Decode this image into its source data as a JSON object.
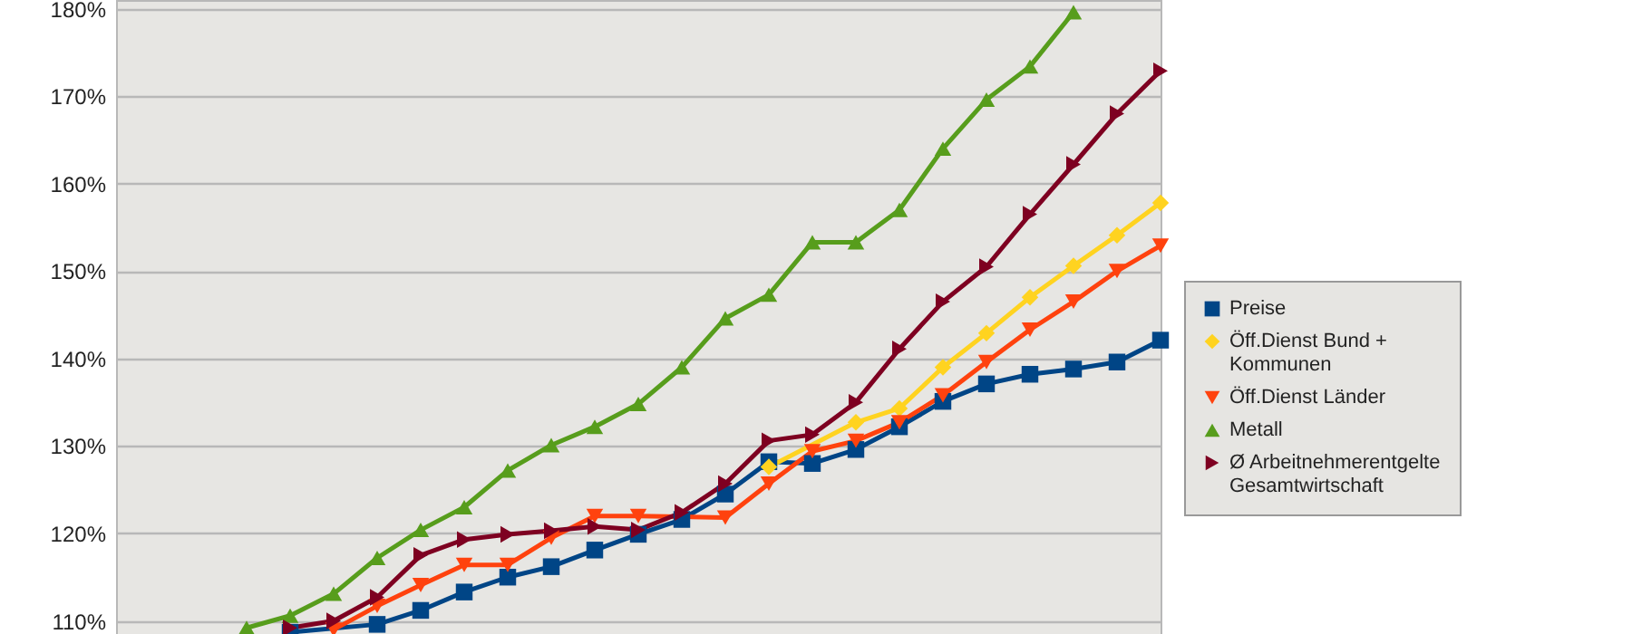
{
  "chart_data": {
    "type": "line",
    "categories": [
      null,
      null,
      null,
      null,
      null,
      null,
      null,
      null,
      null,
      null,
      null,
      null,
      null,
      null,
      null,
      null,
      null,
      null,
      null,
      null,
      null,
      null,
      null,
      null,
      null
    ],
    "series": [
      {
        "name": "Preise",
        "color": "#004586",
        "marker": "square",
        "values": [
          null,
          null,
          null,
          null,
          108.7,
          null,
          109.6,
          111.2,
          113.3,
          115.0,
          116.2,
          118.1,
          119.9,
          121.6,
          124.5,
          128.2,
          128.0,
          129.6,
          132.2,
          135.1,
          137.1,
          138.2,
          138.8,
          139.6,
          142.1
        ]
      },
      {
        "name": "Öff.Dienst Bund + Kommunen",
        "color": "#ffd320",
        "marker": "diamond",
        "values": [
          null,
          null,
          null,
          null,
          null,
          null,
          null,
          null,
          null,
          null,
          null,
          null,
          null,
          null,
          null,
          127.6,
          null,
          132.7,
          134.3,
          139.0,
          142.9,
          147.0,
          150.6,
          154.1,
          157.8
        ]
      },
      {
        "name": "Öff.Dienst Länder",
        "color": "#ff420e",
        "marker": "triangle-down",
        "values": [
          null,
          null,
          null,
          null,
          null,
          109.0,
          111.7,
          114.1,
          116.4,
          116.4,
          119.5,
          122.0,
          122.0,
          null,
          121.8,
          125.7,
          129.4,
          130.6,
          132.7,
          135.8,
          139.6,
          143.3,
          146.5,
          150.0,
          152.9
        ]
      },
      {
        "name": "Metall",
        "color": "#579d1c",
        "marker": "triangle-up",
        "values": [
          null,
          null,
          null,
          109.2,
          110.6,
          113.1,
          117.2,
          120.4,
          123.0,
          127.2,
          130.1,
          132.2,
          134.8,
          139.0,
          144.6,
          147.3,
          153.3,
          153.3,
          157.0,
          164.0,
          169.6,
          173.4,
          179.6,
          null,
          null
        ]
      },
      {
        "name": "Ø Arbeitnehmerentgelte Gesamtwirtschaft",
        "color": "#7e0021",
        "marker": "triangle-right",
        "values": [
          null,
          null,
          null,
          null,
          109.2,
          110.0,
          112.7,
          117.5,
          119.3,
          119.9,
          120.3,
          120.8,
          120.4,
          122.4,
          125.7,
          130.6,
          131.3,
          135.0,
          141.1,
          146.5,
          150.5,
          156.5,
          162.2,
          168.0,
          172.9
        ]
      }
    ],
    "ylim": [
      108.5,
      181
    ],
    "yticks": [
      {
        "value": 110,
        "label": "110%"
      },
      {
        "value": 120,
        "label": "120%"
      },
      {
        "value": 130,
        "label": "130%"
      },
      {
        "value": 140,
        "label": "140%"
      },
      {
        "value": 150,
        "label": "150%"
      },
      {
        "value": 160,
        "label": "160%"
      },
      {
        "value": 170,
        "label": "170%"
      },
      {
        "value": 180,
        "label": "180%"
      }
    ],
    "grid": "y",
    "legend": "right",
    "tick_labels": "y",
    "line_style": "solid"
  }
}
